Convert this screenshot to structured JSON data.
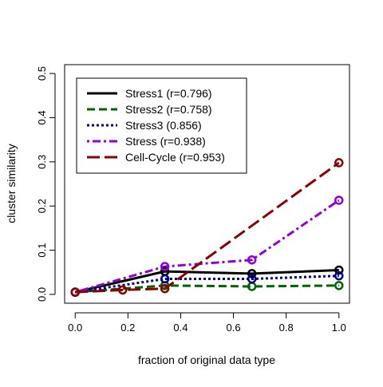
{
  "chart_data": {
    "type": "line",
    "title": "",
    "xlabel": "fraction of original data type",
    "ylabel": "cluster similarity",
    "xlim": [
      -0.04,
      1.04
    ],
    "ylim": [
      -0.02,
      0.52
    ],
    "x_ticks": [
      0.0,
      0.2,
      0.4,
      0.6,
      0.8,
      1.0
    ],
    "x_tick_labels": [
      "0.0",
      "0.2",
      "0.4",
      "0.6",
      "0.8",
      "1.0"
    ],
    "y_ticks": [
      0.0,
      0.1,
      0.2,
      0.3,
      0.4,
      0.5
    ],
    "y_tick_labels": [
      "0.0",
      "0.1",
      "0.2",
      "0.3",
      "0.4",
      "0.5"
    ],
    "grid": false,
    "legend_position": "top-left",
    "marked_x": [
      0.0,
      0.18,
      0.34,
      0.67,
      1.0
    ],
    "series": [
      {
        "name": "Stress1 (r=0.796)",
        "color": "#000000",
        "dash": "solid",
        "x": [
          0.0,
          0.34,
          0.67,
          1.0
        ],
        "y": [
          0.005,
          0.052,
          0.047,
          0.055
        ]
      },
      {
        "name": "Stress2 (r=0.758)",
        "color": "#006400",
        "dash": "dashed",
        "x": [
          0.0,
          0.34,
          0.67,
          1.0
        ],
        "y": [
          0.005,
          0.02,
          0.018,
          0.02
        ]
      },
      {
        "name": "Stress3 (0.856)",
        "color": "#00008b",
        "dash": "dotted",
        "x": [
          0.0,
          0.34,
          0.67,
          1.0
        ],
        "y": [
          0.005,
          0.035,
          0.035,
          0.042
        ]
      },
      {
        "name": "Stress (r=0.938)",
        "color": "#9400d3",
        "dash": "dotdash",
        "x": [
          0.0,
          0.34,
          0.67,
          1.0
        ],
        "y": [
          0.005,
          0.063,
          0.078,
          0.213
        ]
      },
      {
        "name": "Cell-Cycle (r=0.953)",
        "color": "#8b0000",
        "dash": "longdash",
        "x": [
          0.0,
          0.18,
          0.34,
          1.0
        ],
        "y": [
          0.005,
          0.01,
          0.013,
          0.298
        ]
      }
    ]
  }
}
